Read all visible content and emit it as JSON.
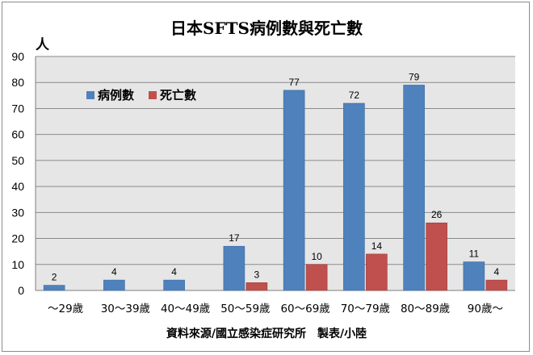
{
  "chart_data": {
    "type": "bar",
    "title": "日本SFTS病例數與死亡數",
    "ylabel": "人",
    "categories": [
      "～29歲",
      "30～39歲",
      "40～49歲",
      "50～59歲",
      "60～69歲",
      "70～79歲",
      "80～89歲",
      "90歲～"
    ],
    "series": [
      {
        "name": "病例數",
        "color": "#4f81bd",
        "values": [
          2,
          4,
          4,
          17,
          77,
          72,
          79,
          11
        ]
      },
      {
        "name": "死亡數",
        "color": "#c0504d",
        "values": [
          0,
          0,
          0,
          3,
          10,
          14,
          26,
          4
        ]
      }
    ],
    "ylim": [
      0,
      90
    ],
    "yticks": [
      0,
      10,
      20,
      30,
      40,
      50,
      60,
      70,
      80,
      90
    ],
    "grid": true,
    "legend_position": "top-left"
  },
  "footer": {
    "source": "資料來源/國立感染症研究所　製表/小陸"
  }
}
